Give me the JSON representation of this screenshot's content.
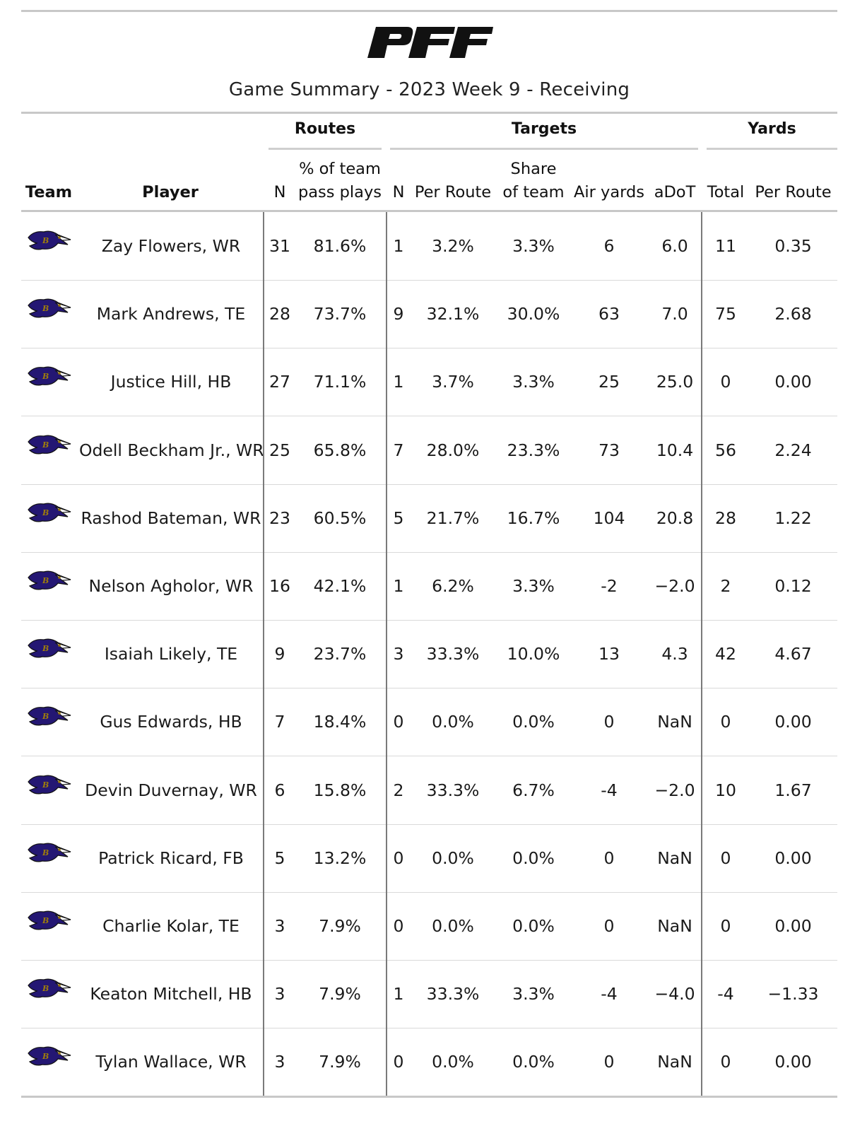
{
  "title": "Game Summary - 2023 Week 9 - Receiving",
  "brand": "PFF",
  "groups": {
    "routes": "Routes",
    "targets": "Targets",
    "yards": "Yards"
  },
  "headers": {
    "team": "Team",
    "player": "Player",
    "routes_n": "N",
    "routes_pct_line1": "% of team",
    "routes_pct_line2": "pass plays",
    "targets_n": "N",
    "targets_per_route": "Per Route",
    "share_line1": "Share",
    "share_line2": "of team",
    "air_yards": "Air yards",
    "adot": "aDoT",
    "yards_total": "Total",
    "yards_per_route": "Per Route"
  },
  "team_logo": "ravens-logo-icon",
  "rows": [
    {
      "player": "Zay Flowers, WR",
      "routes_n": "31",
      "routes_pct": "81.6%",
      "targets_n": "1",
      "targets_per_route": "3.2%",
      "share": "3.3%",
      "air_yards": "6",
      "adot": "6.0",
      "yards_total": "11",
      "yards_per_route": "0.35"
    },
    {
      "player": "Mark Andrews, TE",
      "routes_n": "28",
      "routes_pct": "73.7%",
      "targets_n": "9",
      "targets_per_route": "32.1%",
      "share": "30.0%",
      "air_yards": "63",
      "adot": "7.0",
      "yards_total": "75",
      "yards_per_route": "2.68"
    },
    {
      "player": "Justice Hill, HB",
      "routes_n": "27",
      "routes_pct": "71.1%",
      "targets_n": "1",
      "targets_per_route": "3.7%",
      "share": "3.3%",
      "air_yards": "25",
      "adot": "25.0",
      "yards_total": "0",
      "yards_per_route": "0.00"
    },
    {
      "player": "Odell Beckham Jr., WR",
      "routes_n": "25",
      "routes_pct": "65.8%",
      "targets_n": "7",
      "targets_per_route": "28.0%",
      "share": "23.3%",
      "air_yards": "73",
      "adot": "10.4",
      "yards_total": "56",
      "yards_per_route": "2.24"
    },
    {
      "player": "Rashod Bateman, WR",
      "routes_n": "23",
      "routes_pct": "60.5%",
      "targets_n": "5",
      "targets_per_route": "21.7%",
      "share": "16.7%",
      "air_yards": "104",
      "adot": "20.8",
      "yards_total": "28",
      "yards_per_route": "1.22"
    },
    {
      "player": "Nelson Agholor, WR",
      "routes_n": "16",
      "routes_pct": "42.1%",
      "targets_n": "1",
      "targets_per_route": "6.2%",
      "share": "3.3%",
      "air_yards": "-2",
      "adot": "−2.0",
      "yards_total": "2",
      "yards_per_route": "0.12"
    },
    {
      "player": "Isaiah Likely, TE",
      "routes_n": "9",
      "routes_pct": "23.7%",
      "targets_n": "3",
      "targets_per_route": "33.3%",
      "share": "10.0%",
      "air_yards": "13",
      "adot": "4.3",
      "yards_total": "42",
      "yards_per_route": "4.67"
    },
    {
      "player": "Gus Edwards, HB",
      "routes_n": "7",
      "routes_pct": "18.4%",
      "targets_n": "0",
      "targets_per_route": "0.0%",
      "share": "0.0%",
      "air_yards": "0",
      "adot": "NaN",
      "yards_total": "0",
      "yards_per_route": "0.00"
    },
    {
      "player": "Devin Duvernay, WR",
      "routes_n": "6",
      "routes_pct": "15.8%",
      "targets_n": "2",
      "targets_per_route": "33.3%",
      "share": "6.7%",
      "air_yards": "-4",
      "adot": "−2.0",
      "yards_total": "10",
      "yards_per_route": "1.67"
    },
    {
      "player": "Patrick Ricard, FB",
      "routes_n": "5",
      "routes_pct": "13.2%",
      "targets_n": "0",
      "targets_per_route": "0.0%",
      "share": "0.0%",
      "air_yards": "0",
      "adot": "NaN",
      "yards_total": "0",
      "yards_per_route": "0.00"
    },
    {
      "player": "Charlie Kolar, TE",
      "routes_n": "3",
      "routes_pct": "7.9%",
      "targets_n": "0",
      "targets_per_route": "0.0%",
      "share": "0.0%",
      "air_yards": "0",
      "adot": "NaN",
      "yards_total": "0",
      "yards_per_route": "0.00"
    },
    {
      "player": "Keaton Mitchell, HB",
      "routes_n": "3",
      "routes_pct": "7.9%",
      "targets_n": "1",
      "targets_per_route": "33.3%",
      "share": "3.3%",
      "air_yards": "-4",
      "adot": "−4.0",
      "yards_total": "-4",
      "yards_per_route": "−1.33"
    },
    {
      "player": "Tylan Wallace, WR",
      "routes_n": "3",
      "routes_pct": "7.9%",
      "targets_n": "0",
      "targets_per_route": "0.0%",
      "share": "0.0%",
      "air_yards": "0",
      "adot": "NaN",
      "yards_total": "0",
      "yards_per_route": "0.00"
    }
  ]
}
